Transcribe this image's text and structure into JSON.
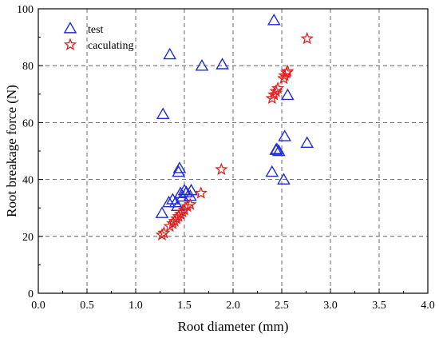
{
  "chart_data": {
    "type": "scatter",
    "xlabel": "Root diameter (mm)",
    "ylabel": "Root breakage force (N)",
    "xlim": [
      0.0,
      4.0
    ],
    "ylim": [
      0,
      100
    ],
    "x_ticks": [
      "0.0",
      "0.5",
      "1.0",
      "1.5",
      "2.0",
      "2.5",
      "3.0",
      "3.5",
      "4.0"
    ],
    "y_ticks": [
      "0",
      "20",
      "40",
      "60",
      "80",
      "100"
    ],
    "grid": "dashed",
    "legend_position": "top-left",
    "series": [
      {
        "name": "test",
        "marker": "triangle",
        "color": "#1f2bd6",
        "points": [
          [
            1.27,
            28.0
          ],
          [
            1.28,
            62.8
          ],
          [
            1.34,
            31.8
          ],
          [
            1.35,
            83.8
          ],
          [
            1.38,
            32.8
          ],
          [
            1.41,
            31.8
          ],
          [
            1.43,
            30.5
          ],
          [
            1.44,
            42.5
          ],
          [
            1.45,
            43.8
          ],
          [
            1.46,
            35.0
          ],
          [
            1.48,
            33.8
          ],
          [
            1.5,
            36.0
          ],
          [
            1.52,
            35.3
          ],
          [
            1.56,
            34.0
          ],
          [
            1.57,
            36.0
          ],
          [
            1.68,
            79.8
          ],
          [
            1.89,
            80.3
          ],
          [
            2.4,
            42.5
          ],
          [
            2.42,
            95.8
          ],
          [
            2.44,
            50.2
          ],
          [
            2.45,
            50.5
          ],
          [
            2.47,
            49.8
          ],
          [
            2.52,
            39.8
          ],
          [
            2.53,
            55.0
          ],
          [
            2.56,
            69.5
          ],
          [
            2.76,
            52.7
          ]
        ]
      },
      {
        "name": "caculating",
        "marker": "star",
        "color": "#e02020",
        "points": [
          [
            1.27,
            20.5
          ],
          [
            1.29,
            21.2
          ],
          [
            1.35,
            23.5
          ],
          [
            1.38,
            24.5
          ],
          [
            1.4,
            25.3
          ],
          [
            1.42,
            26.2
          ],
          [
            1.44,
            27.0
          ],
          [
            1.46,
            27.8
          ],
          [
            1.48,
            28.6
          ],
          [
            1.5,
            29.3
          ],
          [
            1.53,
            30.5
          ],
          [
            1.56,
            31.2
          ],
          [
            1.67,
            35.2
          ],
          [
            1.88,
            43.5
          ],
          [
            2.4,
            68.5
          ],
          [
            2.42,
            69.8
          ],
          [
            2.44,
            71.0
          ],
          [
            2.46,
            72.0
          ],
          [
            2.52,
            75.5
          ],
          [
            2.53,
            76.5
          ],
          [
            2.55,
            77.5
          ],
          [
            2.56,
            78.0
          ],
          [
            2.76,
            89.5
          ]
        ]
      }
    ]
  }
}
